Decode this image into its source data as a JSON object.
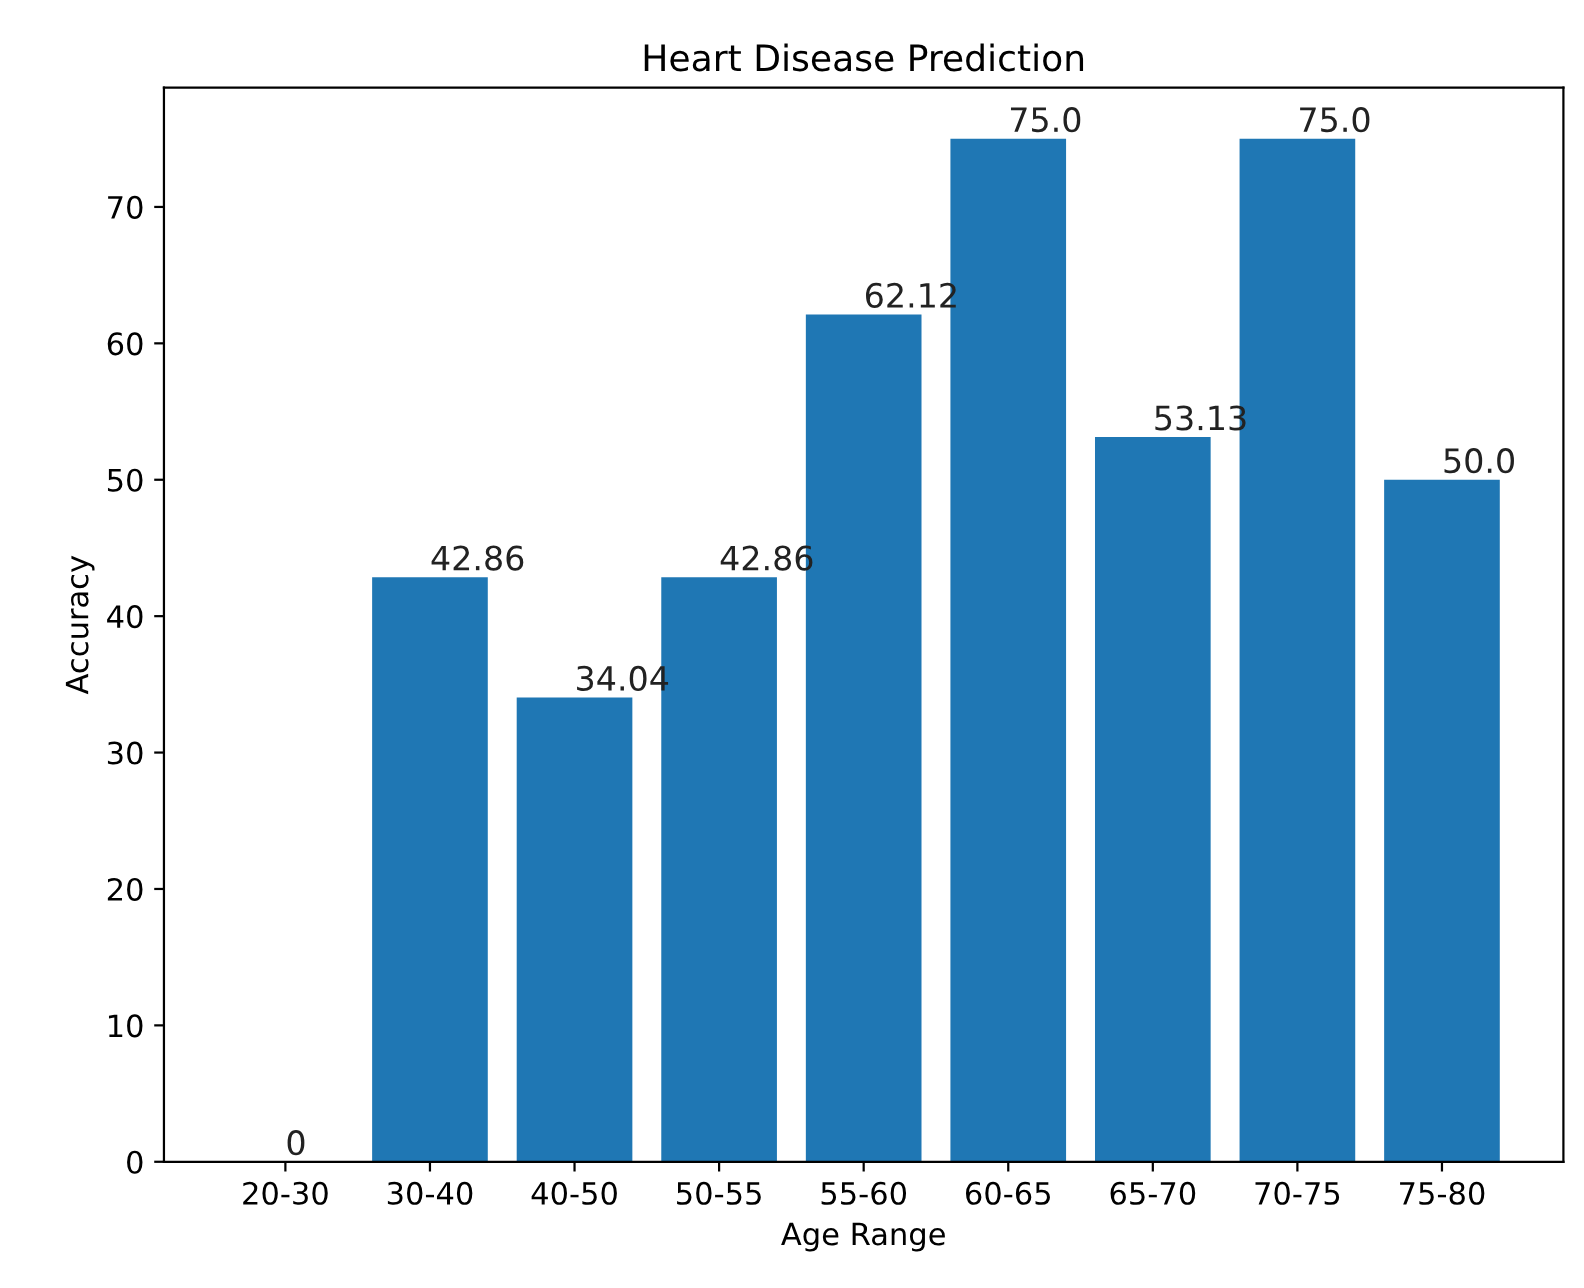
{
  "chart_data": {
    "type": "bar",
    "title": "Heart Disease Prediction",
    "xlabel": "Age Range",
    "ylabel": "Accuracy",
    "categories": [
      "20-30",
      "30-40",
      "40-50",
      "50-55",
      "55-60",
      "60-65",
      "65-70",
      "70-75",
      "75-80"
    ],
    "values": [
      0,
      42.86,
      34.04,
      42.86,
      62.12,
      75.0,
      53.13,
      75.0,
      50.0
    ],
    "value_labels": [
      "0",
      "42.86",
      "34.04",
      "42.86",
      "62.12",
      "75.0",
      "53.13",
      "75.0",
      "50.0"
    ],
    "color": "#1f77b4",
    "ylim": [
      0,
      78.75
    ],
    "yticks": [
      0,
      10,
      20,
      30,
      40,
      50,
      60,
      70
    ],
    "grid": false
  }
}
